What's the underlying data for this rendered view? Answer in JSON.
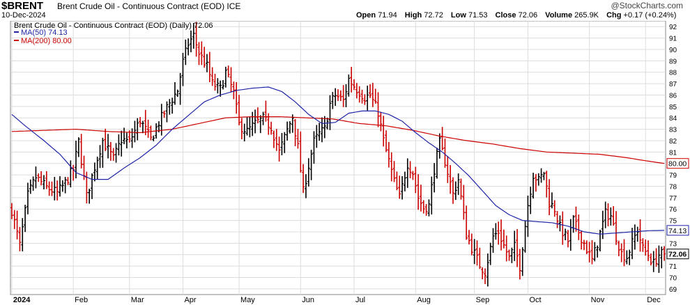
{
  "header": {
    "symbol": "$BRENT",
    "title": "Brent Crude Oil - Continuous Contract (EOD) ICE",
    "date": "10-Dec-2024",
    "brand": "@StockCharts.com",
    "open_label": "Open",
    "open": "71.94",
    "high_label": "High",
    "high": "72.72",
    "low_label": "Low",
    "low": "71.53",
    "close_label": "Close",
    "close": "72.06",
    "volume_label": "Volume",
    "volume": "265.9K",
    "chg_label": "Chg",
    "chg": "+0.17 (+0.24%)"
  },
  "legend": {
    "main": "Brent Crude Oil - Continuous Contract (EOD) (Daily) 72.06",
    "ma50": "MA(50) 74.13",
    "ma200": "MA(200) 80.00"
  },
  "colors": {
    "up": "#000000",
    "down": "#cc0000",
    "ma50": "#1f24a6",
    "ma200": "#cc0000",
    "grid": "#dcdcdc"
  },
  "chart_data": {
    "type": "ohlc",
    "frequency": "daily",
    "ylim": [
      68.5,
      92.5
    ],
    "y_ticks": [
      69,
      70,
      71,
      72,
      73,
      74,
      75,
      76,
      77,
      78,
      79,
      80,
      81,
      82,
      83,
      84,
      85,
      86,
      87,
      88,
      89,
      90,
      91,
      92
    ],
    "x_ticks": [
      {
        "label": "2024",
        "bar": 0
      },
      {
        "label": "Feb",
        "bar": 23
      },
      {
        "label": "Mar",
        "bar": 44
      },
      {
        "label": "Apr",
        "bar": 64
      },
      {
        "label": "May",
        "bar": 85
      },
      {
        "label": "Jun",
        "bar": 108
      },
      {
        "label": "Jul",
        "bar": 128
      },
      {
        "label": "Aug",
        "bar": 151
      },
      {
        "label": "Sep",
        "bar": 173
      },
      {
        "label": "Oct",
        "bar": 193
      },
      {
        "label": "Nov",
        "bar": 216
      },
      {
        "label": "Dec",
        "bar": 237
      }
    ],
    "total_bars": 245,
    "close_anchors": [
      [
        0,
        75.9
      ],
      [
        3,
        72.8
      ],
      [
        6,
        77.2
      ],
      [
        9,
        78.8
      ],
      [
        13,
        77.9
      ],
      [
        17,
        77.4
      ],
      [
        20,
        78.3
      ],
      [
        23,
        79.5
      ],
      [
        25,
        81.9
      ],
      [
        28,
        77.1
      ],
      [
        31,
        79.7
      ],
      [
        34,
        82.0
      ],
      [
        38,
        80.4
      ],
      [
        41,
        82.1
      ],
      [
        44,
        81.9
      ],
      [
        48,
        83.8
      ],
      [
        52,
        82.1
      ],
      [
        55,
        83.6
      ],
      [
        59,
        85.3
      ],
      [
        62,
        86.4
      ],
      [
        64,
        88.9
      ],
      [
        66,
        90.5
      ],
      [
        68,
        91.2
      ],
      [
        70,
        89.7
      ],
      [
        73,
        88.5
      ],
      [
        75,
        87.0
      ],
      [
        78,
        86.5
      ],
      [
        80,
        88.0
      ],
      [
        83,
        86.2
      ],
      [
        85,
        83.4
      ],
      [
        88,
        82.8
      ],
      [
        91,
        83.5
      ],
      [
        94,
        83.9
      ],
      [
        97,
        83.2
      ],
      [
        100,
        81.0
      ],
      [
        103,
        82.9
      ],
      [
        105,
        84.1
      ],
      [
        107,
        81.4
      ],
      [
        109,
        77.5
      ],
      [
        111,
        79.8
      ],
      [
        113,
        81.9
      ],
      [
        115,
        82.6
      ],
      [
        117,
        83.0
      ],
      [
        119,
        85.2
      ],
      [
        121,
        86.0
      ],
      [
        124,
        85.5
      ],
      [
        126,
        87.4
      ],
      [
        129,
        86.5
      ],
      [
        132,
        85.8
      ],
      [
        134,
        86.0
      ],
      [
        137,
        84.5
      ],
      [
        139,
        82.0
      ],
      [
        141,
        80.2
      ],
      [
        143,
        78.4
      ],
      [
        145,
        77.0
      ],
      [
        148,
        80.0
      ],
      [
        150,
        79.2
      ],
      [
        152,
        77.0
      ],
      [
        154,
        76.1
      ],
      [
        156,
        76.3
      ],
      [
        158,
        79.5
      ],
      [
        160,
        81.8
      ],
      [
        162,
        80.2
      ],
      [
        165,
        77.3
      ],
      [
        167,
        78.6
      ],
      [
        170,
        73.8
      ],
      [
        172,
        72.6
      ],
      [
        175,
        71.1
      ],
      [
        177,
        70.5
      ],
      [
        180,
        73.6
      ],
      [
        182,
        74.0
      ],
      [
        184,
        72.8
      ],
      [
        186,
        71.7
      ],
      [
        188,
        72.7
      ],
      [
        190,
        71.0
      ],
      [
        193,
        76.4
      ],
      [
        195,
        79.0
      ],
      [
        197,
        78.5
      ],
      [
        199,
        79.2
      ],
      [
        201,
        76.6
      ],
      [
        203,
        76.0
      ],
      [
        205,
        74.4
      ],
      [
        208,
        73.2
      ],
      [
        210,
        75.0
      ],
      [
        212,
        74.0
      ],
      [
        215,
        72.5
      ],
      [
        217,
        71.5
      ],
      [
        219,
        73.0
      ],
      [
        222,
        75.6
      ],
      [
        224,
        75.4
      ],
      [
        226,
        73.6
      ],
      [
        228,
        72.1
      ],
      [
        230,
        71.8
      ],
      [
        232,
        73.0
      ],
      [
        234,
        74.2
      ],
      [
        236,
        72.5
      ],
      [
        238,
        72.0
      ],
      [
        240,
        71.2
      ],
      [
        242,
        72.0
      ],
      [
        244,
        72.06
      ]
    ],
    "ma50_anchors": [
      [
        0,
        84.3
      ],
      [
        5,
        83.3
      ],
      [
        12,
        82.0
      ],
      [
        18,
        80.8
      ],
      [
        24,
        79.2
      ],
      [
        30,
        78.6
      ],
      [
        36,
        78.6
      ],
      [
        42,
        79.6
      ],
      [
        48,
        80.5
      ],
      [
        54,
        81.6
      ],
      [
        60,
        83.0
      ],
      [
        66,
        84.2
      ],
      [
        72,
        85.4
      ],
      [
        78,
        86.0
      ],
      [
        84,
        86.4
      ],
      [
        90,
        86.6
      ],
      [
        96,
        86.7
      ],
      [
        101,
        86.3
      ],
      [
        106,
        85.4
      ],
      [
        111,
        84.3
      ],
      [
        116,
        83.5
      ],
      [
        121,
        83.6
      ],
      [
        126,
        84.4
      ],
      [
        131,
        84.6
      ],
      [
        136,
        84.6
      ],
      [
        141,
        84.3
      ],
      [
        146,
        83.7
      ],
      [
        151,
        82.7
      ],
      [
        156,
        81.8
      ],
      [
        161,
        81.0
      ],
      [
        166,
        80.0
      ],
      [
        171,
        78.9
      ],
      [
        176,
        77.6
      ],
      [
        181,
        76.3
      ],
      [
        186,
        75.5
      ],
      [
        191,
        75.0
      ],
      [
        196,
        74.9
      ],
      [
        202,
        74.8
      ],
      [
        208,
        74.5
      ],
      [
        214,
        74.0
      ],
      [
        220,
        73.8
      ],
      [
        226,
        73.9
      ],
      [
        232,
        74.0
      ],
      [
        238,
        74.1
      ],
      [
        244,
        74.13
      ]
    ],
    "ma200_anchors": [
      [
        0,
        82.8
      ],
      [
        12,
        82.9
      ],
      [
        24,
        83.0
      ],
      [
        36,
        82.8
      ],
      [
        48,
        82.7
      ],
      [
        60,
        83.0
      ],
      [
        70,
        83.5
      ],
      [
        80,
        84.0
      ],
      [
        90,
        84.1
      ],
      [
        100,
        84.1
      ],
      [
        110,
        84.0
      ],
      [
        120,
        83.9
      ],
      [
        130,
        83.5
      ],
      [
        140,
        83.3
      ],
      [
        150,
        82.9
      ],
      [
        160,
        82.4
      ],
      [
        170,
        82.0
      ],
      [
        180,
        81.7
      ],
      [
        190,
        81.3
      ],
      [
        200,
        81.0
      ],
      [
        210,
        80.9
      ],
      [
        220,
        80.8
      ],
      [
        230,
        80.5
      ],
      [
        238,
        80.2
      ],
      [
        244,
        80.0
      ]
    ],
    "last_close": 72.06,
    "labels": {
      "close": "72.06",
      "ma50": "74.13",
      "ma200": "80.00"
    }
  }
}
